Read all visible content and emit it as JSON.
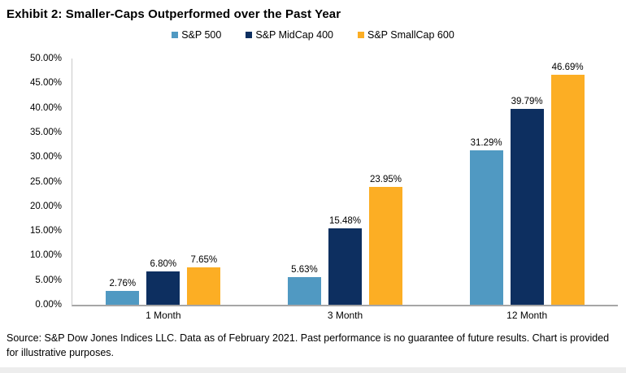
{
  "title": "Exhibit 2: Smaller-Caps Outperformed over the Past Year",
  "source_note": "Source: S&P Dow Jones Indices LLC. Data as of February 2021. Past performance is no guarantee of future results. Chart is provided for illustrative purposes.",
  "chart_data": {
    "type": "bar",
    "title": "Exhibit 2: Smaller-Caps Outperformed over the Past Year",
    "categories": [
      "1 Month",
      "3 Month",
      "12 Month"
    ],
    "series": [
      {
        "name": "S&P 500",
        "color": "#5099C2",
        "values": [
          2.76,
          5.63,
          31.29
        ]
      },
      {
        "name": "S&P MidCap 400",
        "color": "#0D2F60",
        "values": [
          6.8,
          15.48,
          39.79
        ]
      },
      {
        "name": "S&P SmallCap 600",
        "color": "#FCAE24",
        "values": [
          7.65,
          23.95,
          46.69
        ]
      }
    ],
    "xlabel": "",
    "ylabel": "",
    "ylim": [
      0,
      50
    ],
    "ytick_step": 5,
    "ytick_format": "0.00%",
    "value_label_format": "0.00%",
    "grid": false,
    "legend_position": "top",
    "axis_line_color": "#c9c9c9",
    "baseline_color": "#a6a6a6"
  }
}
